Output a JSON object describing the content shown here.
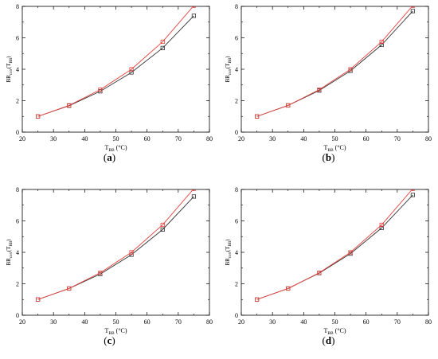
{
  "chart_data": [
    {
      "id": "a",
      "type": "line",
      "label": "a",
      "xlabel_main": "T",
      "xlabel_sub": "BB",
      "xlabel_unit": "(°C)",
      "ylabel_main": "BR",
      "ylabel_sub": "corr",
      "ylabel_arg_main": "T",
      "ylabel_arg_sub": "BB",
      "xlim": [
        20,
        80
      ],
      "ylim": [
        0,
        8
      ],
      "xticks": [
        20,
        30,
        40,
        50,
        60,
        70,
        80
      ],
      "yticks": [
        0,
        2,
        4,
        6,
        8
      ],
      "x": [
        25,
        35,
        45,
        55,
        65,
        75
      ],
      "series": [
        {
          "values": [
            1.0,
            1.68,
            2.6,
            3.8,
            5.35,
            7.4
          ],
          "color": "#333333"
        },
        {
          "values": [
            1.0,
            1.7,
            2.7,
            4.0,
            5.75,
            8.05
          ],
          "color": "#e8413c"
        }
      ]
    },
    {
      "id": "b",
      "type": "line",
      "label": "b",
      "xlabel_main": "T",
      "xlabel_sub": "BB",
      "xlabel_unit": "(°C)",
      "ylabel_main": "BR",
      "ylabel_sub": "corr",
      "ylabel_arg_main": "T",
      "ylabel_arg_sub": "BB",
      "xlim": [
        20,
        80
      ],
      "ylim": [
        0,
        8
      ],
      "xticks": [
        20,
        30,
        40,
        50,
        60,
        70,
        80
      ],
      "yticks": [
        0,
        2,
        4,
        6,
        8
      ],
      "x": [
        25,
        35,
        45,
        55,
        65,
        75
      ],
      "series": [
        {
          "values": [
            1.0,
            1.7,
            2.65,
            3.9,
            5.55,
            7.7
          ],
          "color": "#333333"
        },
        {
          "values": [
            1.0,
            1.7,
            2.7,
            4.0,
            5.75,
            8.05
          ],
          "color": "#e8413c"
        }
      ]
    },
    {
      "id": "c",
      "type": "line",
      "label": "c",
      "xlabel_main": "T",
      "xlabel_sub": "BB",
      "xlabel_unit": "(°C)",
      "ylabel_main": "BR",
      "ylabel_sub": "corr",
      "ylabel_arg_main": "T",
      "ylabel_arg_sub": "BB",
      "xlim": [
        20,
        80
      ],
      "ylim": [
        0,
        8
      ],
      "xticks": [
        20,
        30,
        40,
        50,
        60,
        70,
        80
      ],
      "yticks": [
        0,
        2,
        4,
        6,
        8
      ],
      "x": [
        25,
        35,
        45,
        55,
        65,
        75
      ],
      "series": [
        {
          "values": [
            1.0,
            1.7,
            2.62,
            3.85,
            5.45,
            7.55
          ],
          "color": "#333333"
        },
        {
          "values": [
            1.0,
            1.7,
            2.7,
            4.0,
            5.75,
            8.05
          ],
          "color": "#e8413c"
        }
      ]
    },
    {
      "id": "d",
      "type": "line",
      "label": "d",
      "xlabel_main": "T",
      "xlabel_sub": "BB",
      "xlabel_unit": "(°C)",
      "ylabel_main": "BR",
      "ylabel_sub": "corr",
      "ylabel_arg_main": "T",
      "ylabel_arg_sub": "BB",
      "xlim": [
        20,
        80
      ],
      "ylim": [
        0,
        8
      ],
      "xticks": [
        20,
        30,
        40,
        50,
        60,
        70,
        80
      ],
      "yticks": [
        0,
        2,
        4,
        6,
        8
      ],
      "x": [
        25,
        35,
        45,
        55,
        65,
        75
      ],
      "series": [
        {
          "values": [
            1.0,
            1.7,
            2.68,
            3.92,
            5.55,
            7.65
          ],
          "color": "#333333"
        },
        {
          "values": [
            1.0,
            1.7,
            2.7,
            4.0,
            5.75,
            8.05
          ],
          "color": "#e8413c"
        }
      ]
    }
  ]
}
